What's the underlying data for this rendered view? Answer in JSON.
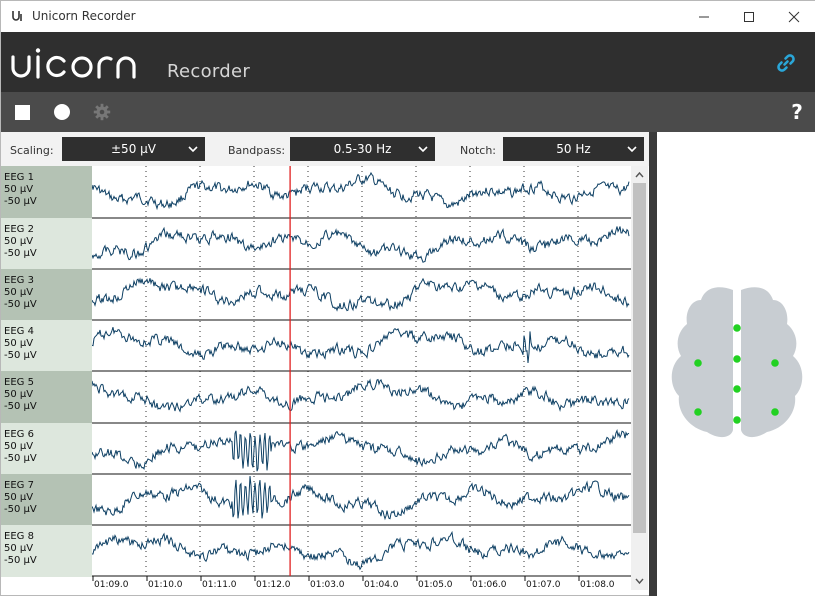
{
  "window": {
    "title": "Unicorn Recorder",
    "minimize_icon": "minimize-icon",
    "maximize_icon": "maximize-icon",
    "close_icon": "close-icon"
  },
  "header": {
    "logo_text": "unicorn",
    "subtitle": "Recorder",
    "link_icon": "link-icon",
    "accent_color": "#2aa6d8",
    "background": "#2f2f2f"
  },
  "toolbar": {
    "stop_icon": "stop-icon",
    "record_icon": "record-icon",
    "settings_icon": "gear-icon",
    "help_label": "?",
    "background": "#4b4b4b"
  },
  "filters": {
    "scaling_label": "Scaling:",
    "scaling_value": "±50 µV",
    "bandpass_label": "Bandpass:",
    "bandpass_value": "0.5-30 Hz",
    "notch_label": "Notch:",
    "notch_value": "50 Hz"
  },
  "channels": [
    {
      "name": "EEG 1",
      "max": "50 µV",
      "min": "-50 µV"
    },
    {
      "name": "EEG 2",
      "max": "50 µV",
      "min": "-50 µV"
    },
    {
      "name": "EEG 3",
      "max": "50 µV",
      "min": "-50 µV"
    },
    {
      "name": "EEG 4",
      "max": "50 µV",
      "min": "-50 µV"
    },
    {
      "name": "EEG 5",
      "max": "50 µV",
      "min": "-50 µV"
    },
    {
      "name": "EEG 6",
      "max": "50 µV",
      "min": "-50 µV"
    },
    {
      "name": "EEG 7",
      "max": "50 µV",
      "min": "-50 µV"
    },
    {
      "name": "EEG 8",
      "max": "50 µV",
      "min": "-50 µV"
    }
  ],
  "time_axis": {
    "ticks": [
      "01:09.0",
      "01:10.0",
      "01:11.0",
      "01:12.0",
      "01:03.0",
      "01:04.0",
      "01:05.0",
      "01:06.0",
      "01:07.0",
      "01:08.0"
    ],
    "cursor_after_tick": 3,
    "cursor_fraction": 0.65
  },
  "colors": {
    "trace": "#0d3f63",
    "cursor": "#e02020",
    "electrode": "#22d122",
    "head": "#c8cdd2",
    "label_dark": "#b4c2b4",
    "label_light": "#dde7dd"
  },
  "head_map": {
    "electrode_count": 8
  }
}
